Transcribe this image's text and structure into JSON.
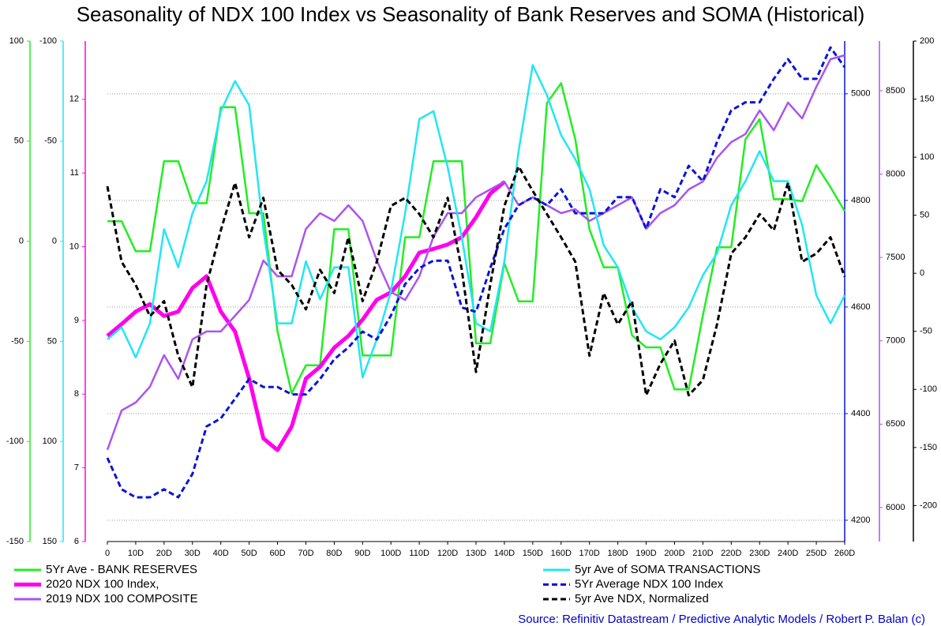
{
  "chart_data": {
    "type": "line",
    "title": "Seasonality of NDX 100 Index vs Seasonality of Bank Reserves and SOMA (Historical)",
    "source": "Source: Refinitiv Datastream / Predictive Analytic Models / Robert P. Balan (c)",
    "x": [
      0,
      5,
      10,
      15,
      20,
      25,
      30,
      35,
      40,
      45,
      50,
      55,
      60,
      65,
      70,
      75,
      80,
      85,
      90,
      95,
      100,
      105,
      110,
      115,
      120,
      125,
      130,
      135,
      140,
      145,
      150,
      155,
      160,
      165,
      170,
      175,
      180,
      185,
      190,
      195,
      200,
      205,
      210,
      215,
      220,
      225,
      230,
      235,
      240,
      245,
      250,
      255,
      260
    ],
    "xlim": [
      0,
      260
    ],
    "xticks": [
      0,
      {
        "value": 10,
        "label": "10D"
      },
      {
        "value": 20,
        "label": "20D"
      },
      {
        "value": 30,
        "label": "30D"
      },
      {
        "value": 40,
        "label": "40D"
      },
      {
        "value": 50,
        "label": "50D"
      },
      {
        "value": 60,
        "label": "60D"
      },
      {
        "value": 70,
        "label": "70D"
      },
      {
        "value": 80,
        "label": "80D"
      },
      {
        "value": 90,
        "label": "90D"
      },
      {
        "value": 100,
        "label": "100D"
      },
      {
        "value": 110,
        "label": "110D"
      },
      {
        "value": 120,
        "label": "120D"
      },
      {
        "value": 130,
        "label": "130D"
      },
      {
        "value": 140,
        "label": "140D"
      },
      {
        "value": 150,
        "label": "150D"
      },
      {
        "value": 160,
        "label": "160D"
      },
      {
        "value": 170,
        "label": "170D"
      },
      {
        "value": 180,
        "label": "180D"
      },
      {
        "value": 190,
        "label": "190D"
      },
      {
        "value": 200,
        "label": "200D"
      },
      {
        "value": 210,
        "label": "210D"
      },
      {
        "value": 220,
        "label": "220D"
      },
      {
        "value": 230,
        "label": "230D"
      },
      {
        "value": 240,
        "label": "240D"
      },
      {
        "value": 250,
        "label": "250D"
      },
      {
        "value": 260,
        "label": "260D"
      }
    ],
    "ylim": [
      -150,
      100
    ],
    "yticks": [
      100,
      50,
      0,
      -50,
      -100,
      -150
    ],
    "y2lim": [
      150,
      -100
    ],
    "y2ticks": [
      -100,
      -50,
      0,
      50,
      100,
      150
    ],
    "y3lim": [
      6,
      12.79
    ],
    "y3ticks": [
      6,
      7,
      8,
      9,
      10,
      11,
      12
    ],
    "y4lim": [
      4160,
      5099
    ],
    "y4ticks": [
      4200,
      4400,
      4600,
      4800,
      5000
    ],
    "y5lim": [
      5796,
      8798
    ],
    "y5ticks": [
      6000,
      6500,
      7000,
      7500,
      8000,
      8500
    ],
    "y6lim": [
      -231,
      200
    ],
    "y6ticks": [
      -200,
      -150,
      -100,
      -50,
      0,
      50,
      100,
      150,
      200
    ],
    "grid": "y4",
    "series": [
      {
        "name": "5Yr Ave - BANK RESERVES",
        "color": "#22ee22",
        "axis": "y",
        "values": [
          10,
          10,
          -5,
          -5,
          40,
          40,
          19,
          19,
          67,
          67,
          14,
          14,
          -45,
          -76,
          -62,
          -62,
          6,
          6,
          -57,
          -57,
          -57,
          2,
          2,
          40,
          40,
          40,
          -51,
          -51,
          -11,
          -30,
          -30,
          69,
          79,
          51,
          6,
          -13,
          -13,
          -47,
          -53,
          -53,
          -74,
          -74,
          -37,
          -3,
          -3,
          51,
          61,
          21,
          21,
          20,
          38,
          27,
          15
        ]
      },
      {
        "name": "2020 NDX 100 Index,",
        "color": "#ff00ee",
        "axis": "y3",
        "bold": true,
        "values": [
          8.79,
          8.95,
          9.12,
          9.22,
          9.06,
          9.12,
          9.44,
          9.6,
          9.12,
          8.85,
          8.21,
          7.4,
          7.24,
          7.56,
          8.21,
          8.37,
          8.63,
          8.79,
          9.01,
          9.28,
          9.38,
          9.6,
          9.92,
          9.97,
          10.03,
          10.13,
          10.4,
          10.72,
          10.88,
          null,
          null,
          null,
          null,
          null,
          null,
          null,
          null,
          null,
          null,
          null,
          null,
          null,
          null,
          null,
          null,
          null,
          null,
          null,
          null,
          null,
          null,
          null,
          null
        ]
      },
      {
        "name": "2019 NDX 100 COMPOSITE",
        "color": "#aa55ee",
        "axis": "y5",
        "values": [
          6346,
          6582,
          6630,
          6724,
          6914,
          6772,
          7009,
          7056,
          7056,
          7150,
          7245,
          7482,
          7387,
          7387,
          7671,
          7766,
          7719,
          7813,
          7719,
          7482,
          7293,
          7245,
          7387,
          7624,
          7766,
          7766,
          7861,
          7908,
          7955,
          7813,
          7861,
          7813,
          7766,
          7790,
          7719,
          7766,
          7813,
          7861,
          7671,
          7766,
          7813,
          7908,
          7955,
          8098,
          8192,
          8240,
          8382,
          8263,
          8429,
          8334,
          8524,
          8689,
          8713
        ]
      },
      {
        "name": "5yr Ave of SOMA TRANSACTIONS",
        "color": "#22e6f5",
        "axis": "y2",
        "values": [
          49,
          43,
          58,
          41,
          -6,
          13,
          -14,
          -30,
          -65,
          -80,
          -68,
          -6,
          41,
          41,
          10,
          29,
          13,
          13,
          68,
          49,
          25,
          -14,
          -61,
          -65,
          -37,
          -2,
          41,
          45,
          10,
          -45,
          -88,
          -73,
          -53,
          -41,
          -26,
          2,
          13,
          33,
          45,
          49,
          43,
          33,
          17,
          6,
          -18,
          -30,
          -45,
          -30,
          -30,
          -8,
          27,
          41,
          27
        ]
      },
      {
        "name": "5Yr Average NDX 100 Index",
        "color": "#0a14d6",
        "axis": "y4",
        "dashed": true,
        "values": [
          4317,
          4258,
          4243,
          4243,
          4258,
          4243,
          4287,
          4376,
          4391,
          4428,
          4465,
          4450,
          4450,
          4436,
          4436,
          4465,
          4502,
          4524,
          4554,
          4539,
          4584,
          4643,
          4673,
          4687,
          4687,
          4599,
          4591,
          4673,
          4747,
          4791,
          4806,
          4791,
          4821,
          4776,
          4776,
          4776,
          4806,
          4806,
          4747,
          4821,
          4806,
          4865,
          4836,
          4910,
          4969,
          4984,
          4984,
          5028,
          5065,
          5028,
          5028,
          5087,
          5050
        ]
      },
      {
        "name": "5yr Ave NDX, Normalized",
        "color": "#000000",
        "axis": "y6",
        "dashed": true,
        "values": [
          75,
          10,
          -10,
          -37,
          -24,
          -71,
          -98,
          -10,
          37,
          78,
          31,
          65,
          3,
          -10,
          -31,
          3,
          -17,
          31,
          -24,
          10,
          58,
          65,
          51,
          31,
          65,
          3,
          -85,
          -10,
          58,
          92,
          71,
          51,
          31,
          10,
          -71,
          -17,
          -44,
          -24,
          -105,
          -78,
          -58,
          -105,
          -92,
          -44,
          17,
          31,
          51,
          37,
          78,
          10,
          17,
          31,
          -3
        ]
      }
    ]
  }
}
